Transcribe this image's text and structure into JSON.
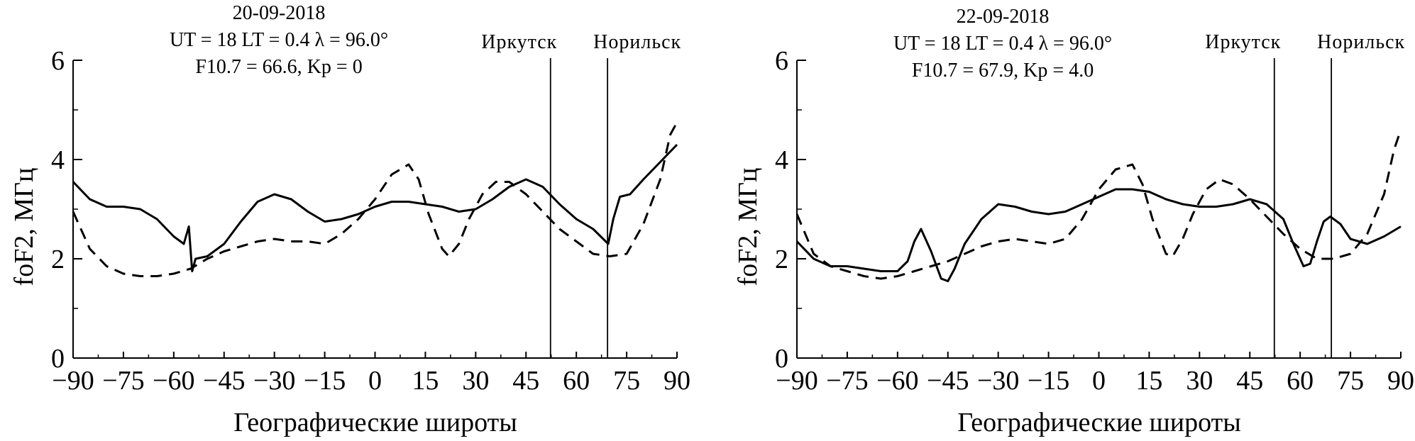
{
  "chart_data": [
    {
      "type": "line",
      "header": [
        "20-09-2018",
        "UT = 18 LT = 0.4 λ = 96.0°",
        "F10.7 = 66.6, Kp = 0"
      ],
      "xlabel": "Географические широты",
      "ylabel": "foF2, МГц",
      "xlim": [
        -90,
        90
      ],
      "ylim": [
        0,
        6
      ],
      "xticks": [
        "−90",
        "−75",
        "−60",
        "−45",
        "−30",
        "−15",
        "0",
        "15",
        "30",
        "45",
        "60",
        "75",
        "90"
      ],
      "yticks": [
        "0",
        "2",
        "4",
        "6"
      ],
      "grid": false,
      "markers": [
        {
          "label": "Иркутск",
          "x": 52.3
        },
        {
          "label": "Норильск",
          "x": 69.3
        }
      ],
      "series": [
        {
          "style": "solid",
          "x": [
            -90,
            -85,
            -80,
            -75,
            -70,
            -65,
            -60,
            -57,
            -55.5,
            -54.5,
            -53.5,
            -50,
            -45,
            -40,
            -35,
            -30,
            -25,
            -20,
            -15,
            -10,
            -5,
            0,
            5,
            10,
            15,
            20,
            25,
            30,
            35,
            40,
            45,
            50,
            55,
            60,
            65,
            68,
            69.5,
            71,
            73,
            76,
            80,
            85,
            90
          ],
          "y": [
            3.55,
            3.2,
            3.05,
            3.05,
            3.0,
            2.8,
            2.45,
            2.3,
            2.65,
            1.75,
            2.0,
            2.05,
            2.3,
            2.75,
            3.15,
            3.3,
            3.2,
            2.95,
            2.75,
            2.8,
            2.9,
            3.05,
            3.15,
            3.15,
            3.1,
            3.05,
            2.95,
            3.0,
            3.2,
            3.45,
            3.6,
            3.45,
            3.1,
            2.8,
            2.6,
            2.4,
            2.3,
            2.8,
            3.25,
            3.3,
            3.6,
            3.95,
            4.3
          ]
        },
        {
          "style": "dashed",
          "x": [
            -90,
            -85,
            -80,
            -75,
            -70,
            -65,
            -60,
            -55,
            -50,
            -45,
            -40,
            -35,
            -30,
            -25,
            -20,
            -15,
            -10,
            -5,
            0,
            5,
            10,
            13,
            16,
            20,
            22,
            25,
            28,
            32,
            36,
            40,
            45,
            50,
            55,
            60,
            65,
            70,
            75,
            80,
            85,
            88,
            90
          ],
          "y": [
            2.95,
            2.2,
            1.85,
            1.7,
            1.65,
            1.65,
            1.7,
            1.8,
            2.0,
            2.15,
            2.25,
            2.35,
            2.4,
            2.35,
            2.35,
            2.3,
            2.5,
            2.8,
            3.2,
            3.7,
            3.9,
            3.6,
            2.9,
            2.2,
            2.05,
            2.3,
            2.8,
            3.3,
            3.55,
            3.55,
            3.3,
            2.95,
            2.6,
            2.35,
            2.1,
            2.05,
            2.1,
            2.7,
            3.6,
            4.5,
            4.75
          ]
        }
      ]
    },
    {
      "type": "line",
      "header": [
        "22-09-2018",
        "UT = 18 LT = 0.4 λ = 96.0°",
        "F10.7 = 67.9, Kp = 4.0"
      ],
      "xlabel": "Географические широты",
      "ylabel": "foF2, МГц",
      "xlim": [
        -90,
        90
      ],
      "ylim": [
        0,
        6
      ],
      "xticks": [
        "−90",
        "−75",
        "−60",
        "−45",
        "−30",
        "−15",
        "0",
        "15",
        "30",
        "45",
        "60",
        "75",
        "90"
      ],
      "yticks": [
        "0",
        "2",
        "4",
        "6"
      ],
      "grid": false,
      "markers": [
        {
          "label": "Иркутск",
          "x": 52.3
        },
        {
          "label": "Норильск",
          "x": 69.3
        }
      ],
      "series": [
        {
          "style": "solid",
          "x": [
            -90,
            -85,
            -80,
            -75,
            -70,
            -65,
            -60,
            -57,
            -55,
            -53,
            -50,
            -47,
            -45,
            -43,
            -40,
            -35,
            -30,
            -25,
            -20,
            -15,
            -10,
            -5,
            0,
            5,
            10,
            15,
            20,
            25,
            30,
            35,
            40,
            45,
            50,
            55,
            58,
            61,
            63,
            65,
            67,
            69,
            72,
            75,
            80,
            85,
            90
          ],
          "y": [
            2.35,
            2.0,
            1.85,
            1.85,
            1.8,
            1.75,
            1.75,
            1.95,
            2.35,
            2.6,
            2.15,
            1.6,
            1.55,
            1.8,
            2.3,
            2.8,
            3.1,
            3.05,
            2.95,
            2.9,
            2.95,
            3.1,
            3.25,
            3.4,
            3.4,
            3.35,
            3.2,
            3.1,
            3.05,
            3.05,
            3.1,
            3.2,
            3.1,
            2.8,
            2.3,
            1.85,
            1.9,
            2.35,
            2.75,
            2.85,
            2.7,
            2.4,
            2.3,
            2.45,
            2.65
          ]
        },
        {
          "style": "dashed",
          "x": [
            -90,
            -85,
            -80,
            -75,
            -70,
            -65,
            -60,
            -55,
            -50,
            -45,
            -40,
            -35,
            -30,
            -25,
            -20,
            -15,
            -10,
            -5,
            0,
            5,
            10,
            13,
            16,
            20,
            22,
            25,
            28,
            32,
            36,
            40,
            45,
            50,
            55,
            60,
            65,
            70,
            75,
            80,
            85,
            88,
            90
          ],
          "y": [
            2.9,
            2.1,
            1.85,
            1.75,
            1.65,
            1.6,
            1.65,
            1.75,
            1.85,
            1.95,
            2.1,
            2.25,
            2.35,
            2.4,
            2.35,
            2.3,
            2.4,
            2.8,
            3.4,
            3.8,
            3.9,
            3.5,
            2.8,
            2.1,
            2.05,
            2.4,
            2.9,
            3.4,
            3.6,
            3.5,
            3.2,
            2.85,
            2.5,
            2.2,
            2.0,
            2.0,
            2.1,
            2.5,
            3.3,
            4.2,
            4.6
          ]
        }
      ]
    }
  ]
}
